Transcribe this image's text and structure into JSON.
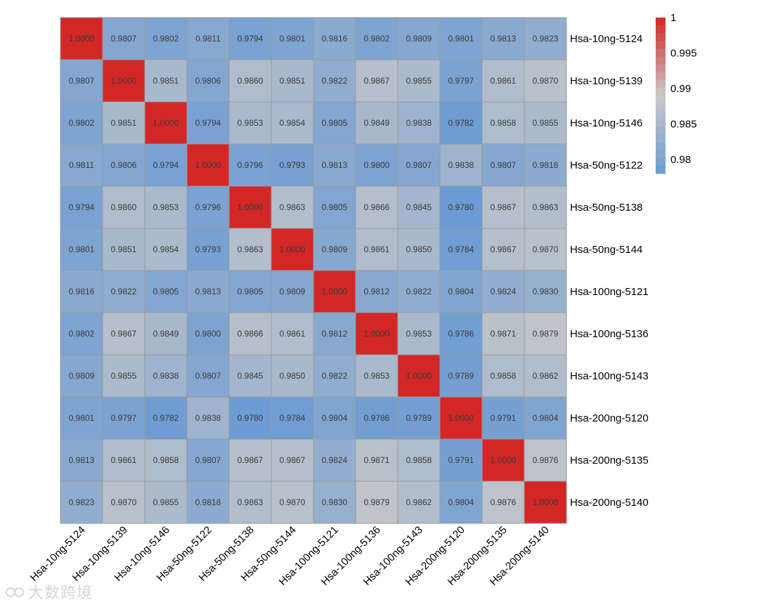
{
  "watermark": {
    "text": "大数跨境"
  },
  "chart_data": {
    "type": "heatmap",
    "title": "",
    "row_labels": [
      "Hsa-10ng-5124",
      "Hsa-10ng-5139",
      "Hsa-10ng-5146",
      "Hsa-50ng-5122",
      "Hsa-50ng-5138",
      "Hsa-50ng-5144",
      "Hsa-100ng-5121",
      "Hsa-100ng-5136",
      "Hsa-100ng-5143",
      "Hsa-200ng-5120",
      "Hsa-200ng-5135",
      "Hsa-200ng-5140"
    ],
    "col_labels": [
      "Hsa-10ng-5124",
      "Hsa-10ng-5139",
      "Hsa-10ng-5146",
      "Hsa-50ng-5122",
      "Hsa-50ng-5138",
      "Hsa-50ng-5144",
      "Hsa-100ng-5121",
      "Hsa-100ng-5136",
      "Hsa-100ng-5143",
      "Hsa-200ng-5120",
      "Hsa-200ng-5135",
      "Hsa-200ng-5140"
    ],
    "values": [
      [
        1.0,
        0.9807,
        0.9802,
        0.9811,
        0.9794,
        0.9801,
        0.9816,
        0.9802,
        0.9809,
        0.9801,
        0.9813,
        0.9823
      ],
      [
        0.9807,
        1.0,
        0.9851,
        0.9806,
        0.986,
        0.9851,
        0.9822,
        0.9867,
        0.9855,
        0.9797,
        0.9861,
        0.987
      ],
      [
        0.9802,
        0.9851,
        1.0,
        0.9794,
        0.9853,
        0.9854,
        0.9805,
        0.9849,
        0.9838,
        0.9782,
        0.9858,
        0.9855
      ],
      [
        0.9811,
        0.9806,
        0.9794,
        1.0,
        0.9796,
        0.9793,
        0.9813,
        0.98,
        0.9807,
        0.9838,
        0.9807,
        0.9818
      ],
      [
        0.9794,
        0.986,
        0.9853,
        0.9796,
        1.0,
        0.9863,
        0.9805,
        0.9866,
        0.9845,
        0.978,
        0.9867,
        0.9863
      ],
      [
        0.9801,
        0.9851,
        0.9854,
        0.9793,
        0.9863,
        1.0,
        0.9809,
        0.9861,
        0.985,
        0.9784,
        0.9867,
        0.987
      ],
      [
        0.9816,
        0.9822,
        0.9805,
        0.9813,
        0.9805,
        0.9809,
        1.0,
        0.9812,
        0.9822,
        0.9804,
        0.9824,
        0.983
      ],
      [
        0.9802,
        0.9867,
        0.9849,
        0.98,
        0.9866,
        0.9861,
        0.9812,
        1.0,
        0.9853,
        0.9786,
        0.9871,
        0.9879
      ],
      [
        0.9809,
        0.9855,
        0.9838,
        0.9807,
        0.9845,
        0.985,
        0.9822,
        0.9853,
        1.0,
        0.9789,
        0.9858,
        0.9862
      ],
      [
        0.9801,
        0.9797,
        0.9782,
        0.9838,
        0.978,
        0.9784,
        0.9804,
        0.9786,
        0.9789,
        1.0,
        0.9791,
        0.9804
      ],
      [
        0.9813,
        0.9861,
        0.9858,
        0.9807,
        0.9867,
        0.9867,
        0.9824,
        0.9871,
        0.9858,
        0.9791,
        1.0,
        0.9876
      ],
      [
        0.9823,
        0.987,
        0.9855,
        0.9818,
        0.9863,
        0.987,
        0.983,
        0.9879,
        0.9862,
        0.9804,
        0.9876,
        1.0
      ]
    ],
    "value_format_decimals": 4,
    "color_scale": {
      "min": 0.978,
      "mid": 0.989,
      "max": 1.0,
      "low_color": "#6d9bd3",
      "mid_color": "#c9c9c9",
      "high_color": "#d32727"
    },
    "legend": {
      "position": "right",
      "ticks": [
        1,
        0.995,
        0.99,
        0.985,
        0.98
      ],
      "tick_labels": [
        "1",
        "0.995",
        "0.99",
        "0.985",
        "0.98"
      ]
    },
    "cell_border_color": "#9a9a9a"
  }
}
